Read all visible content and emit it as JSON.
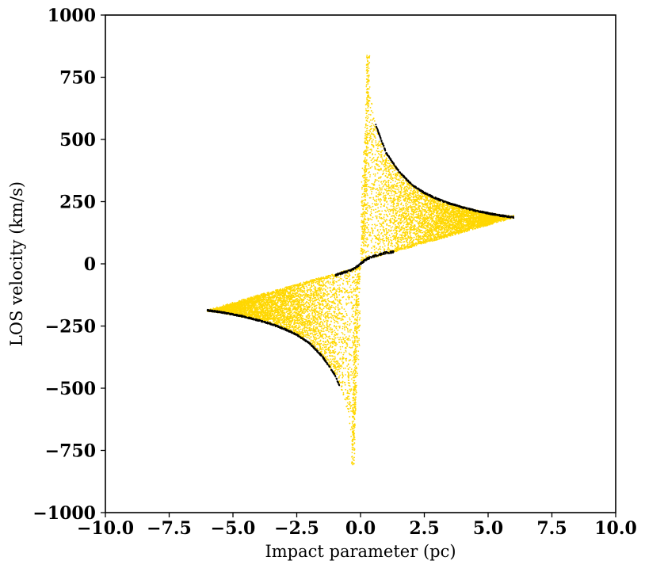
{
  "chart_data": {
    "type": "scatter",
    "xlabel": "Impact parameter (pc)",
    "ylabel": "LOS velocity (km/s)",
    "xlim": [
      -10,
      10
    ],
    "ylim": [
      -1000,
      1000
    ],
    "x_ticks": [
      -10,
      -7.5,
      -5,
      -2.5,
      0,
      2.5,
      5,
      7.5,
      10
    ],
    "y_ticks": [
      -1000,
      -750,
      -500,
      -250,
      0,
      250,
      500,
      750,
      1000
    ],
    "x_tick_labels": [
      "−10.0",
      "−7.5",
      "−5.0",
      "−2.5",
      "0.0",
      "2.5",
      "5.0",
      "7.5",
      "10.0"
    ],
    "y_tick_labels": [
      "−1000",
      "−750",
      "−500",
      "−250",
      "0",
      "250",
      "500",
      "750",
      "1000"
    ],
    "grid": false,
    "legend": "none",
    "series": [
      {
        "color": "#FFD700",
        "shape": "filled region bounded by outer envelope and inner line",
        "envelope_upper": {
          "x": [
            0.3,
            0.5,
            0.75,
            1.0,
            1.5,
            2.0,
            2.5,
            3.0,
            3.5,
            4.0,
            4.5,
            5.0,
            5.5,
            6.0
          ],
          "y": [
            760,
            600,
            510,
            450,
            375,
            322,
            288,
            264,
            245,
            230,
            217,
            206,
            197,
            190
          ]
        },
        "inner_line_upper": {
          "x": [
            0.0,
            1.0,
            2.0,
            3.0,
            4.0,
            5.0,
            6.0
          ],
          "y": [
            15,
            43,
            72,
            101,
            130,
            160,
            190
          ]
        },
        "envelope_lower": {
          "x": [
            -0.3,
            -0.5,
            -0.75,
            -1.0,
            -1.5,
            -2.0,
            -2.5,
            -3.0,
            -3.5,
            -4.0,
            -4.5,
            -5.0,
            -5.5,
            -6.0
          ],
          "y": [
            -760,
            -600,
            -510,
            -450,
            -375,
            -322,
            -288,
            -264,
            -245,
            -230,
            -217,
            -206,
            -197,
            -190
          ]
        },
        "inner_line_lower": {
          "x": [
            0.0,
            -1.0,
            -2.0,
            -3.0,
            -4.0,
            -5.0,
            -6.0
          ],
          "y": [
            -15,
            -43,
            -72,
            -101,
            -130,
            -160,
            -190
          ]
        },
        "spike_tips": [
          {
            "x": 0.3,
            "y": 840
          },
          {
            "x": -0.3,
            "y": -810
          }
        ]
      },
      {
        "color": "#000000",
        "shape": "points along envelope edges",
        "outer_edge_upper": {
          "x": [
            0.6,
            1.0,
            1.5,
            2.0,
            2.5,
            3.0,
            3.5,
            4.0,
            4.5,
            5.0,
            5.5,
            6.0
          ],
          "y": [
            560,
            450,
            375,
            322,
            288,
            264,
            245,
            230,
            217,
            206,
            197,
            190
          ]
        },
        "outer_edge_lower": {
          "x": [
            -0.8,
            -1.0,
            -1.5,
            -2.0,
            -2.5,
            -3.0,
            -3.5,
            -4.0,
            -4.5,
            -5.0,
            -5.5,
            -6.0
          ],
          "y": [
            -500,
            -450,
            -375,
            -322,
            -288,
            -264,
            -245,
            -230,
            -217,
            -206,
            -197,
            -190
          ]
        },
        "inner_center": {
          "x": [
            -1.0,
            -0.75,
            -0.5,
            -0.25,
            0.0,
            0.25,
            0.5,
            0.75,
            1.0,
            1.3
          ],
          "y": [
            -45,
            -38,
            -30,
            -20,
            0,
            20,
            30,
            38,
            45,
            48
          ]
        }
      }
    ]
  }
}
